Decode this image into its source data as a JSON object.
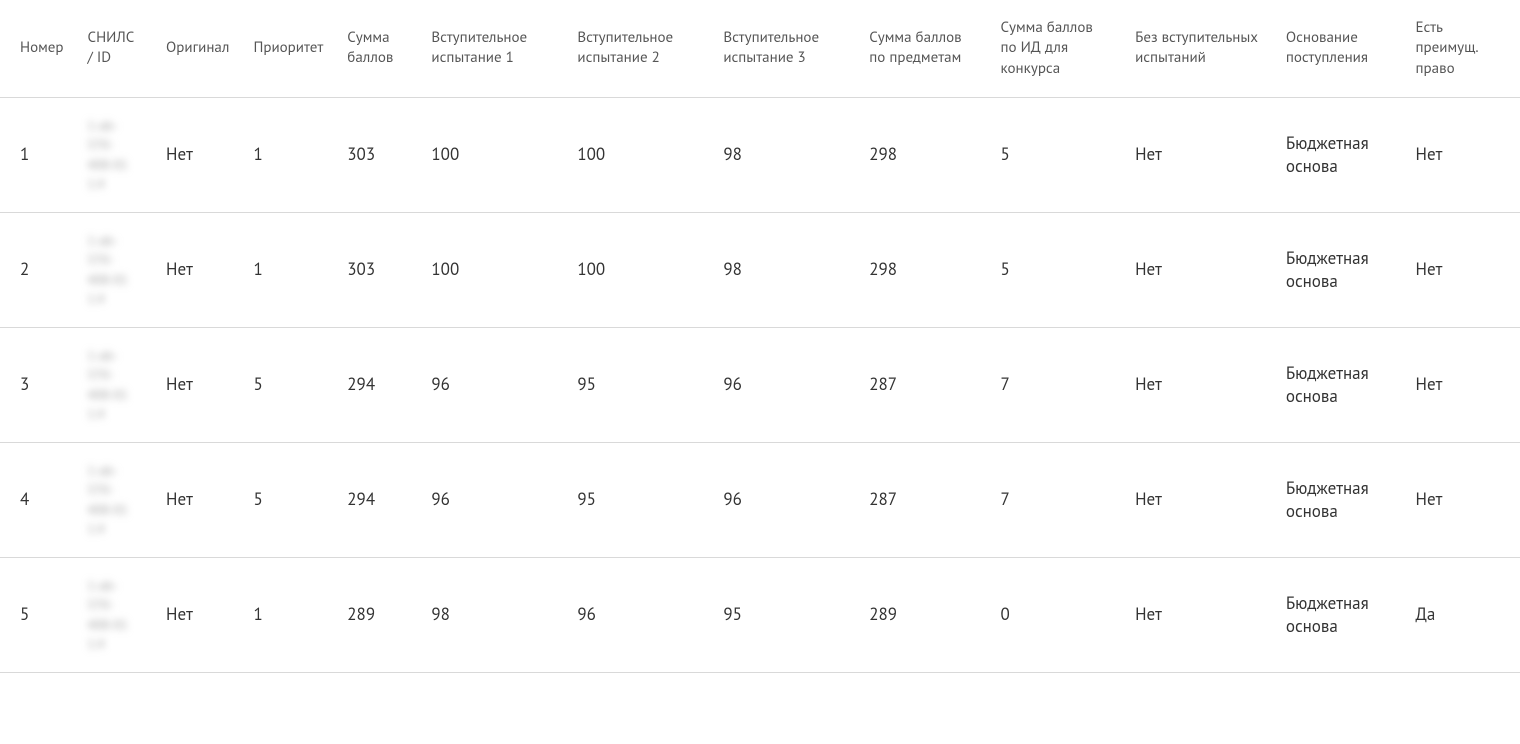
{
  "table": {
    "type": "table",
    "background_color": "#ffffff",
    "border_color": "#d9d9d9",
    "header_text_color": "#555555",
    "body_text_color": "#333333",
    "header_fontsize": 15,
    "body_fontsize": 17,
    "columns": [
      "Номер",
      "СНИЛС / ID",
      "Оригинал",
      "Приоритет",
      "Сумма баллов",
      "Вступительное испытание 1",
      "Вступительное испытание 2",
      "Вступительное испытание 3",
      "Сумма баллов по предметам",
      "Сумма баллов по ИД для конкурса",
      "Без вступительных испытаний",
      "Основание поступления",
      "Есть преимущ. право"
    ],
    "snils_placeholder": "1-ab-\n570-\n408-01\n1.4",
    "rows": [
      {
        "nomer": "1",
        "original": "Нет",
        "prioritet": "1",
        "summa_ballov": "303",
        "isp1": "100",
        "isp2": "100",
        "isp3": "98",
        "summa_predmet": "298",
        "summa_id": "5",
        "bez_isp": "Нет",
        "osnovanie": "Бюджетная основа",
        "preimush": "Нет"
      },
      {
        "nomer": "2",
        "original": "Нет",
        "prioritet": "1",
        "summa_ballov": "303",
        "isp1": "100",
        "isp2": "100",
        "isp3": "98",
        "summa_predmet": "298",
        "summa_id": "5",
        "bez_isp": "Нет",
        "osnovanie": "Бюджетная основа",
        "preimush": "Нет"
      },
      {
        "nomer": "3",
        "original": "Нет",
        "prioritet": "5",
        "summa_ballov": "294",
        "isp1": "96",
        "isp2": "95",
        "isp3": "96",
        "summa_predmet": "287",
        "summa_id": "7",
        "bez_isp": "Нет",
        "osnovanie": "Бюджетная основа",
        "preimush": "Нет"
      },
      {
        "nomer": "4",
        "original": "Нет",
        "prioritet": "5",
        "summa_ballov": "294",
        "isp1": "96",
        "isp2": "95",
        "isp3": "96",
        "summa_predmet": "287",
        "summa_id": "7",
        "bez_isp": "Нет",
        "osnovanie": "Бюджетная основа",
        "preimush": "Нет"
      },
      {
        "nomer": "5",
        "original": "Нет",
        "prioritet": "1",
        "summa_ballov": "289",
        "isp1": "98",
        "isp2": "96",
        "isp3": "95",
        "summa_predmet": "289",
        "summa_id": "0",
        "bez_isp": "Нет",
        "osnovanie": "Бюджетная основа",
        "preimush": "Да"
      }
    ]
  }
}
